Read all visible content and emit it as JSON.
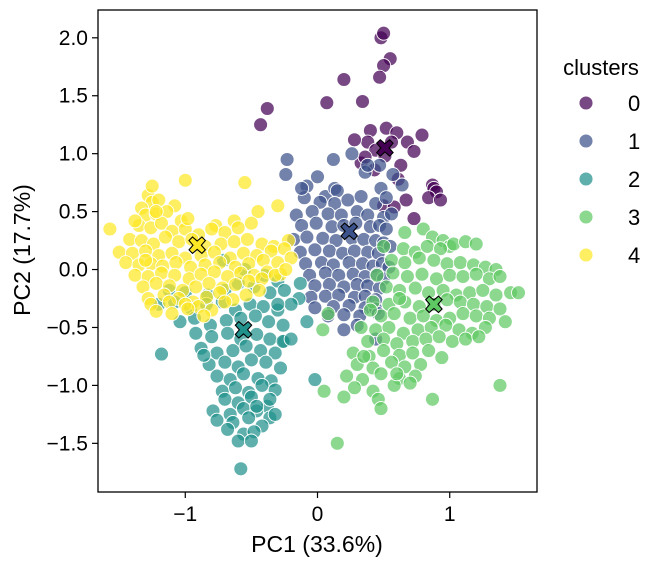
{
  "chart_data": {
    "type": "scatter",
    "title": "",
    "xlabel": "PC1 (33.6%)",
    "ylabel": "PC2 (17.7%)",
    "xlim": [
      -1.66,
      1.66
    ],
    "ylim": [
      -1.92,
      2.24
    ],
    "xticks": [
      -1,
      0,
      1
    ],
    "xtick_labels": [
      "−1",
      "0",
      "1"
    ],
    "yticks": [
      -1.5,
      -1.0,
      -0.5,
      0.0,
      0.5,
      1.0,
      1.5,
      2.0
    ],
    "ytick_labels": [
      "−1.5",
      "−1.0",
      "−0.5",
      "0.0",
      "0.5",
      "1.0",
      "1.5",
      "2.0"
    ],
    "grid": false,
    "legend": {
      "title": "clusters",
      "placement": "outside-right"
    },
    "series": [
      {
        "name": "0",
        "color": "#440154",
        "x": [
          0.48,
          0.5,
          0.55,
          0.5,
          0.47,
          0.2,
          0.07,
          -0.38,
          -0.43,
          0.52,
          0.4,
          0.6,
          0.38,
          0.28,
          0.56,
          0.44,
          0.68,
          0.73,
          0.79,
          0.51,
          0.33,
          0.36,
          0.63,
          0.43,
          0.61,
          0.87,
          0.88,
          0.9,
          0.84,
          0.93,
          0.67,
          0.5,
          0.58,
          0.73,
          0.34
        ],
        "y": [
          2.0,
          2.04,
          1.82,
          1.76,
          1.66,
          1.64,
          1.44,
          1.39,
          1.25,
          1.22,
          1.2,
          1.18,
          1.1,
          1.12,
          1.1,
          1.03,
          1.1,
          1.02,
          1.16,
          0.98,
          0.92,
          0.97,
          0.9,
          0.86,
          0.78,
          0.73,
          0.7,
          0.67,
          0.62,
          0.6,
          0.6,
          0.55,
          0.54,
          0.44,
          1.45
        ]
      },
      {
        "name": "1",
        "color": "#3b528b",
        "x": [
          -0.23,
          -0.24,
          -0.08,
          0.06,
          0.13,
          0.15,
          0.36,
          0.47,
          0.64,
          0.57,
          0.48,
          -0.1,
          0.02,
          0.13,
          0.23,
          0.33,
          0.44,
          0.52,
          -0.16,
          -0.04,
          0.08,
          0.18,
          0.3,
          0.38,
          0.5,
          0.56,
          -0.12,
          -0.01,
          0.11,
          0.2,
          0.29,
          0.4,
          0.47,
          0.52,
          -0.18,
          -0.08,
          0.04,
          0.14,
          0.26,
          0.35,
          0.44,
          0.5,
          0.55,
          -0.13,
          -0.02,
          0.09,
          0.19,
          0.28,
          0.38,
          0.46,
          -0.09,
          0.03,
          0.12,
          0.24,
          0.34,
          0.42,
          0.49,
          0.54,
          -0.06,
          0.06,
          0.16,
          0.27,
          0.36,
          0.45,
          0.5,
          -0.02,
          0.09,
          0.2,
          0.3,
          0.38,
          0.47,
          -0.05,
          0.06,
          0.16,
          0.28,
          0.36,
          0.44,
          -0.02,
          0.12,
          0.24,
          0.36,
          0.44,
          0.08,
          0.2,
          0.32,
          0.46,
          0.2,
          0.3,
          0.0,
          -0.12,
          0.44,
          0.12,
          0.26,
          0.38
        ],
        "y": [
          0.95,
          0.82,
          0.72,
          0.63,
          0.7,
          0.68,
          0.84,
          0.9,
          0.73,
          0.82,
          0.7,
          0.62,
          0.58,
          0.57,
          0.6,
          0.63,
          0.57,
          0.62,
          0.47,
          0.5,
          0.48,
          0.47,
          0.5,
          0.47,
          0.45,
          0.48,
          0.38,
          0.4,
          0.37,
          0.38,
          0.4,
          0.37,
          0.38,
          0.35,
          0.26,
          0.28,
          0.27,
          0.25,
          0.27,
          0.26,
          0.25,
          0.23,
          0.2,
          0.15,
          0.17,
          0.16,
          0.14,
          0.16,
          0.15,
          0.14,
          0.05,
          0.06,
          0.04,
          0.06,
          0.05,
          0.03,
          0.05,
          0.02,
          -0.05,
          -0.03,
          -0.05,
          -0.04,
          -0.06,
          -0.04,
          -0.08,
          -0.14,
          -0.13,
          -0.15,
          -0.13,
          -0.14,
          -0.16,
          -0.24,
          -0.23,
          -0.22,
          -0.24,
          -0.23,
          -0.26,
          -0.33,
          -0.32,
          -0.31,
          -0.33,
          -0.34,
          -0.4,
          -0.39,
          -0.4,
          -0.38,
          -0.52,
          -0.48,
          0.8,
          0.7,
          -0.6,
          0.95,
          1.0,
          0.9
        ]
      },
      {
        "name": "2",
        "color": "#21918c",
        "x": [
          -0.71,
          -0.55,
          -0.4,
          -0.3,
          -1.12,
          -1.0,
          -0.83,
          -0.7,
          -0.6,
          -0.48,
          -0.36,
          -0.25,
          -0.14,
          -1.2,
          -1.08,
          -0.96,
          -0.84,
          -0.72,
          -0.62,
          -0.51,
          -0.41,
          -0.3,
          -0.2,
          -1.04,
          -0.93,
          -0.81,
          -0.69,
          -0.58,
          -0.47,
          -0.37,
          -0.26,
          -0.92,
          -0.8,
          -0.68,
          -0.58,
          -0.46,
          -0.36,
          -0.25,
          -0.88,
          -0.76,
          -0.64,
          -0.54,
          -0.43,
          -0.32,
          -0.82,
          -0.7,
          -0.6,
          -0.5,
          -0.39,
          -0.28,
          -0.76,
          -0.66,
          -0.56,
          -0.45,
          -0.35,
          -0.72,
          -0.62,
          -0.52,
          -0.42,
          -0.32,
          -0.7,
          -0.6,
          -0.5,
          -0.38,
          -0.79,
          -0.66,
          -0.56,
          -0.46,
          -0.36,
          -0.76,
          -0.64,
          -0.52,
          -0.42,
          -0.36,
          -0.32,
          -0.68,
          -0.56,
          -0.48,
          -0.6,
          -0.5,
          -0.58,
          -1.18,
          -0.86,
          -0.26,
          -0.02,
          -0.08,
          -0.2,
          -0.13,
          -0.3,
          -0.46
        ],
        "y": [
          0.08,
          0.0,
          -0.05,
          -0.1,
          -0.18,
          -0.2,
          -0.22,
          -0.18,
          -0.12,
          -0.15,
          -0.2,
          -0.18,
          -0.25,
          -0.3,
          -0.28,
          -0.33,
          -0.3,
          -0.28,
          -0.35,
          -0.3,
          -0.32,
          -0.35,
          -0.3,
          -0.45,
          -0.42,
          -0.48,
          -0.44,
          -0.42,
          -0.4,
          -0.45,
          -0.48,
          -0.55,
          -0.58,
          -0.55,
          -0.6,
          -0.56,
          -0.6,
          -0.62,
          -0.68,
          -0.72,
          -0.7,
          -0.66,
          -0.7,
          -0.72,
          -0.82,
          -0.8,
          -0.84,
          -0.78,
          -0.8,
          -0.85,
          -0.92,
          -0.95,
          -0.9,
          -0.94,
          -0.96,
          -1.05,
          -1.02,
          -1.06,
          -1.0,
          -1.04,
          -1.12,
          -1.15,
          -1.1,
          -1.18,
          -1.22,
          -1.25,
          -1.2,
          -1.22,
          -1.28,
          -1.3,
          -1.32,
          -1.28,
          -1.35,
          -1.12,
          -1.25,
          -1.38,
          -1.42,
          -1.4,
          -1.48,
          -1.48,
          -1.72,
          -0.73,
          -0.74,
          -0.62,
          -0.95,
          -0.45,
          -0.6,
          -0.12,
          -0.3,
          -1.18
        ]
      },
      {
        "name": "3",
        "color": "#5ec962",
        "x": [
          0.66,
          0.8,
          0.87,
          0.95,
          1.0,
          0.5,
          0.65,
          0.74,
          0.83,
          0.93,
          1.03,
          1.12,
          1.2,
          0.56,
          0.66,
          0.77,
          0.88,
          0.98,
          1.08,
          1.18,
          1.27,
          1.35,
          0.45,
          0.57,
          0.68,
          0.79,
          0.9,
          1.0,
          1.1,
          1.2,
          1.3,
          1.38,
          0.52,
          0.62,
          0.74,
          0.84,
          0.95,
          1.05,
          1.15,
          1.25,
          1.35,
          1.46,
          0.42,
          0.54,
          0.66,
          0.77,
          0.88,
          0.98,
          1.08,
          1.18,
          1.28,
          1.38,
          0.48,
          0.58,
          0.7,
          0.8,
          0.9,
          1.0,
          1.1,
          1.2,
          1.3,
          1.42,
          0.33,
          0.44,
          0.54,
          0.65,
          0.76,
          0.86,
          0.97,
          1.07,
          1.17,
          1.27,
          0.38,
          0.5,
          0.6,
          0.72,
          0.82,
          0.92,
          1.02,
          1.12,
          1.22,
          0.27,
          0.39,
          0.5,
          0.62,
          0.72,
          0.84,
          0.94,
          0.3,
          0.42,
          0.56,
          0.66,
          0.78,
          0.22,
          0.34,
          0.48,
          0.62,
          0.74,
          0.28,
          0.42,
          0.58,
          0.05,
          0.2,
          0.46,
          0.7,
          0.08,
          0.35,
          0.6,
          0.87,
          0.48,
          1.38,
          1.52,
          0.15,
          0.04,
          0.4,
          0.62
        ],
        "y": [
          0.32,
          0.35,
          0.28,
          0.25,
          0.2,
          0.2,
          0.18,
          0.15,
          0.2,
          0.18,
          0.22,
          0.24,
          0.22,
          0.08,
          0.06,
          0.1,
          0.08,
          0.05,
          0.06,
          0.04,
          0.02,
          0.0,
          -0.05,
          -0.03,
          -0.06,
          -0.04,
          -0.08,
          -0.05,
          -0.06,
          -0.04,
          -0.08,
          -0.06,
          -0.15,
          -0.18,
          -0.16,
          -0.2,
          -0.18,
          -0.22,
          -0.2,
          -0.18,
          -0.22,
          -0.2,
          -0.28,
          -0.3,
          -0.28,
          -0.32,
          -0.3,
          -0.26,
          -0.28,
          -0.3,
          -0.32,
          -0.34,
          -0.4,
          -0.38,
          -0.42,
          -0.4,
          -0.44,
          -0.42,
          -0.38,
          -0.4,
          -0.42,
          -0.45,
          -0.5,
          -0.52,
          -0.5,
          -0.55,
          -0.52,
          -0.5,
          -0.48,
          -0.52,
          -0.55,
          -0.5,
          -0.62,
          -0.6,
          -0.64,
          -0.62,
          -0.6,
          -0.58,
          -0.62,
          -0.6,
          -0.58,
          -0.72,
          -0.75,
          -0.7,
          -0.74,
          -0.72,
          -0.7,
          -0.76,
          -0.82,
          -0.85,
          -0.8,
          -0.84,
          -0.82,
          -0.92,
          -0.95,
          -0.9,
          -0.94,
          -0.92,
          -1.02,
          -1.05,
          -1.0,
          -1.05,
          -1.1,
          -1.12,
          -0.98,
          -0.38,
          -0.75,
          -0.9,
          -1.12,
          -1.2,
          -1.0,
          -0.2,
          -1.5,
          -0.52,
          -0.35,
          -0.25
        ],
        "sizes_note": ""
      },
      {
        "name": "4",
        "color": "#fde725",
        "x": [
          -1.28,
          -1.25,
          -1.33,
          -1.2,
          -1.08,
          -1.3,
          -1.22,
          -1.14,
          -1.03,
          -0.77,
          -0.63,
          -0.45,
          -0.3,
          -1.35,
          -1.26,
          -1.18,
          -1.1,
          -1.0,
          -0.9,
          -0.8,
          -0.7,
          -0.6,
          -0.5,
          -1.42,
          -1.33,
          -1.24,
          -1.15,
          -1.05,
          -0.95,
          -0.85,
          -0.73,
          -0.63,
          -0.53,
          -0.42,
          -0.33,
          -0.22,
          -1.5,
          -1.4,
          -1.3,
          -1.2,
          -1.1,
          -1.0,
          -0.88,
          -0.78,
          -0.66,
          -0.56,
          -0.46,
          -0.35,
          -0.25,
          -1.45,
          -1.35,
          -1.26,
          -1.17,
          -1.07,
          -0.96,
          -0.85,
          -0.74,
          -0.62,
          -0.52,
          -0.41,
          -0.3,
          -0.2,
          -1.38,
          -1.28,
          -1.18,
          -1.08,
          -0.97,
          -0.88,
          -0.78,
          -0.68,
          -0.58,
          -0.48,
          -0.38,
          -0.28,
          -1.32,
          -1.22,
          -1.12,
          -1.02,
          -0.92,
          -0.82,
          -0.72,
          -0.62,
          -0.52,
          -0.42,
          -0.32,
          -1.28,
          -1.16,
          -1.05,
          -0.94,
          -0.84,
          -0.74,
          -0.64,
          -0.54,
          -0.44,
          -1.26,
          -1.12,
          -1.0,
          -0.9,
          -0.8,
          -0.7,
          -1.22,
          -1.1,
          -0.98,
          -0.86,
          -1.25,
          -1.0,
          -0.55,
          -1.57,
          -1.22,
          -0.98,
          -1.3,
          -1.38,
          -0.24
        ],
        "y": [
          0.64,
          0.58,
          0.53,
          0.6,
          0.55,
          0.47,
          0.48,
          0.5,
          0.42,
          0.38,
          0.42,
          0.5,
          0.55,
          0.38,
          0.36,
          0.4,
          0.33,
          0.35,
          0.3,
          0.35,
          0.32,
          0.36,
          0.4,
          0.26,
          0.25,
          0.22,
          0.28,
          0.24,
          0.26,
          0.2,
          0.22,
          0.24,
          0.26,
          0.22,
          0.2,
          0.25,
          0.15,
          0.14,
          0.16,
          0.12,
          0.14,
          0.1,
          0.12,
          0.15,
          0.1,
          0.14,
          0.12,
          0.16,
          0.18,
          0.06,
          0.04,
          0.05,
          0.03,
          0.06,
          0.02,
          0.04,
          0.06,
          0.02,
          0.05,
          0.08,
          0.06,
          0.1,
          -0.05,
          -0.06,
          -0.03,
          -0.05,
          -0.08,
          -0.04,
          -0.02,
          -0.06,
          -0.03,
          -0.05,
          -0.02,
          -0.04,
          -0.15,
          -0.12,
          -0.14,
          -0.18,
          -0.15,
          -0.12,
          -0.16,
          -0.13,
          -0.1,
          -0.08,
          -0.05,
          -0.25,
          -0.22,
          -0.25,
          -0.28,
          -0.24,
          -0.2,
          -0.26,
          -0.22,
          -0.18,
          -0.3,
          -0.28,
          -0.3,
          -0.32,
          -0.35,
          -0.28,
          -0.36,
          -0.38,
          -0.34,
          -0.4,
          0.72,
          0.77,
          0.75,
          0.35,
          0.5,
          0.44,
          0.08,
          0.42,
          0.0
        ]
      }
    ],
    "centroids": [
      {
        "cluster": "0",
        "x": 0.51,
        "y": 1.05,
        "color": "#440154"
      },
      {
        "cluster": "1",
        "x": 0.24,
        "y": 0.33,
        "color": "#3b528b"
      },
      {
        "cluster": "2",
        "x": -0.56,
        "y": -0.52,
        "color": "#21918c"
      },
      {
        "cluster": "3",
        "x": 0.88,
        "y": -0.3,
        "color": "#5ec962"
      },
      {
        "cluster": "4",
        "x": -0.91,
        "y": 0.21,
        "color": "#fde725"
      }
    ]
  }
}
